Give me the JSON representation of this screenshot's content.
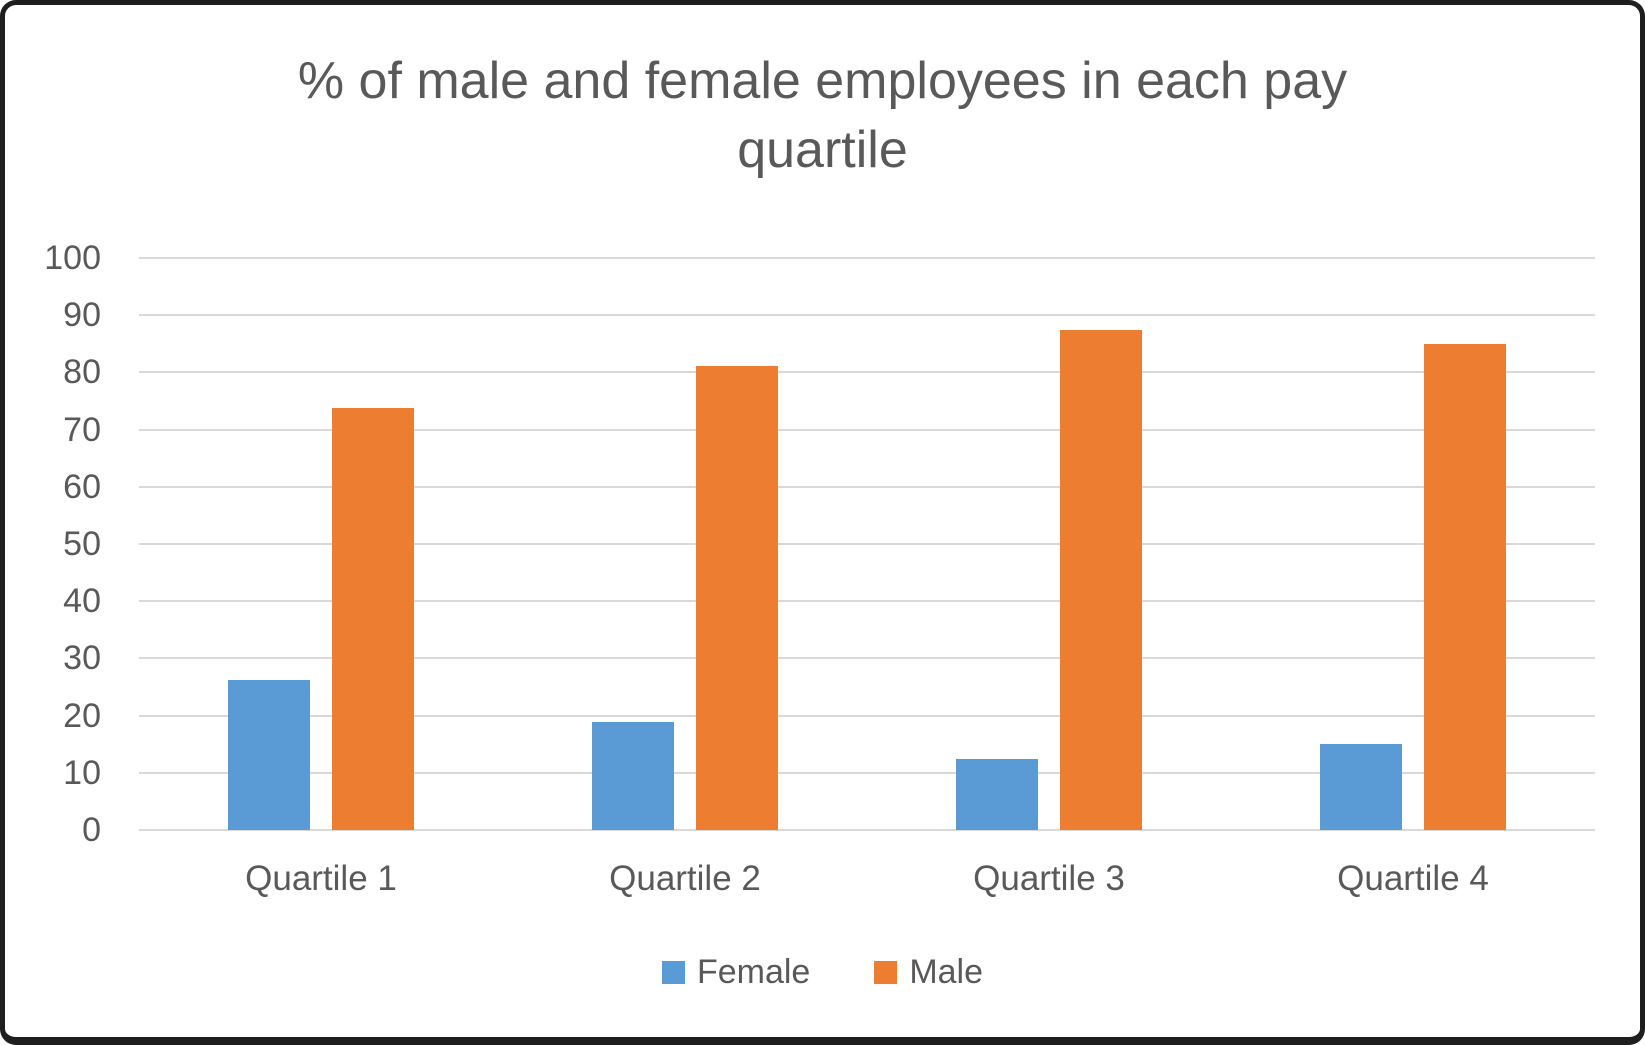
{
  "chart_data": {
    "type": "bar",
    "title": "% of male and female employees in each pay quartile",
    "categories": [
      "Quartile 1",
      "Quartile 2",
      "Quartile 3",
      "Quartile 4"
    ],
    "series": [
      {
        "name": "Female",
        "color": "#5B9BD5",
        "values": [
          26.3,
          18.8,
          12.5,
          15
        ]
      },
      {
        "name": "Male",
        "color": "#ED7D31",
        "values": [
          73.7,
          81.2,
          87.5,
          85
        ]
      }
    ],
    "xlabel": "",
    "ylabel": "",
    "ylim": [
      0,
      100
    ],
    "yticks": [
      0,
      10,
      20,
      30,
      40,
      50,
      60,
      70,
      80,
      90,
      100
    ],
    "grid": true,
    "legend_position": "bottom",
    "colors": {
      "text": "#595959",
      "gridline": "#d9d9d9",
      "background": "#ffffff",
      "frame_border": "#1e1e1e"
    }
  }
}
